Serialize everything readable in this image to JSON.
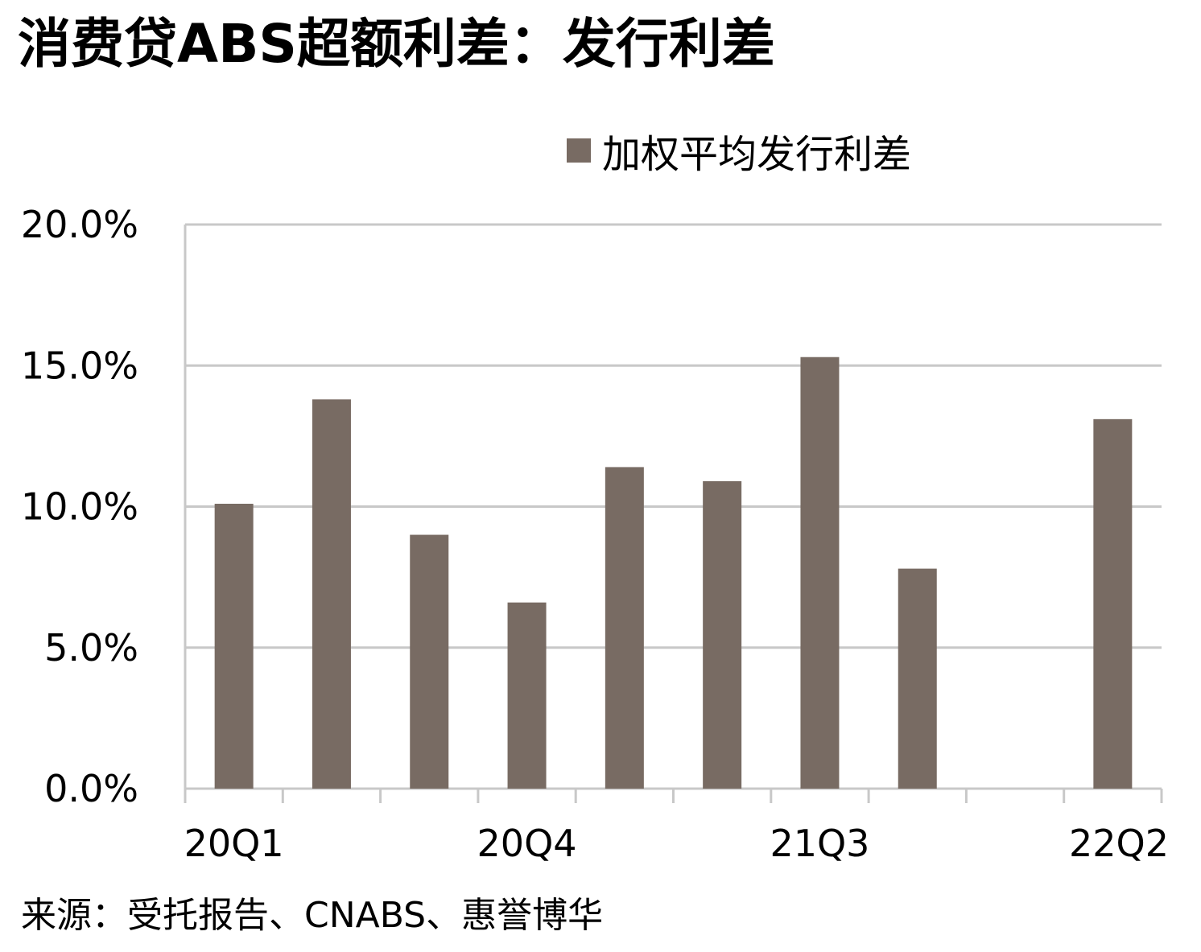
{
  "title": "消费贷ABS超额利差：发行利差",
  "source": "来源：受托报告、CNABS、惠誉博华",
  "colors": {
    "bar": "#786b63",
    "grid": "#c8c8c8",
    "axis": "#c8c8c8"
  },
  "chart_data": {
    "type": "bar",
    "categories": [
      "20Q1",
      "",
      "",
      "20Q4",
      "",
      "",
      "21Q3",
      "",
      "",
      "22Q2"
    ],
    "series": [
      {
        "name": "加权平均发行利差",
        "values": [
          10.1,
          13.8,
          9.0,
          6.6,
          11.4,
          10.9,
          15.3,
          7.8,
          null,
          13.1
        ]
      }
    ],
    "y_ticks": [
      "0.0%",
      "5.0%",
      "10.0%",
      "15.0%",
      "20.0%"
    ],
    "ylim": [
      0,
      20
    ],
    "y_step": 5,
    "grid": true,
    "legend_position": "top-right",
    "xlabel": "",
    "ylabel": ""
  }
}
